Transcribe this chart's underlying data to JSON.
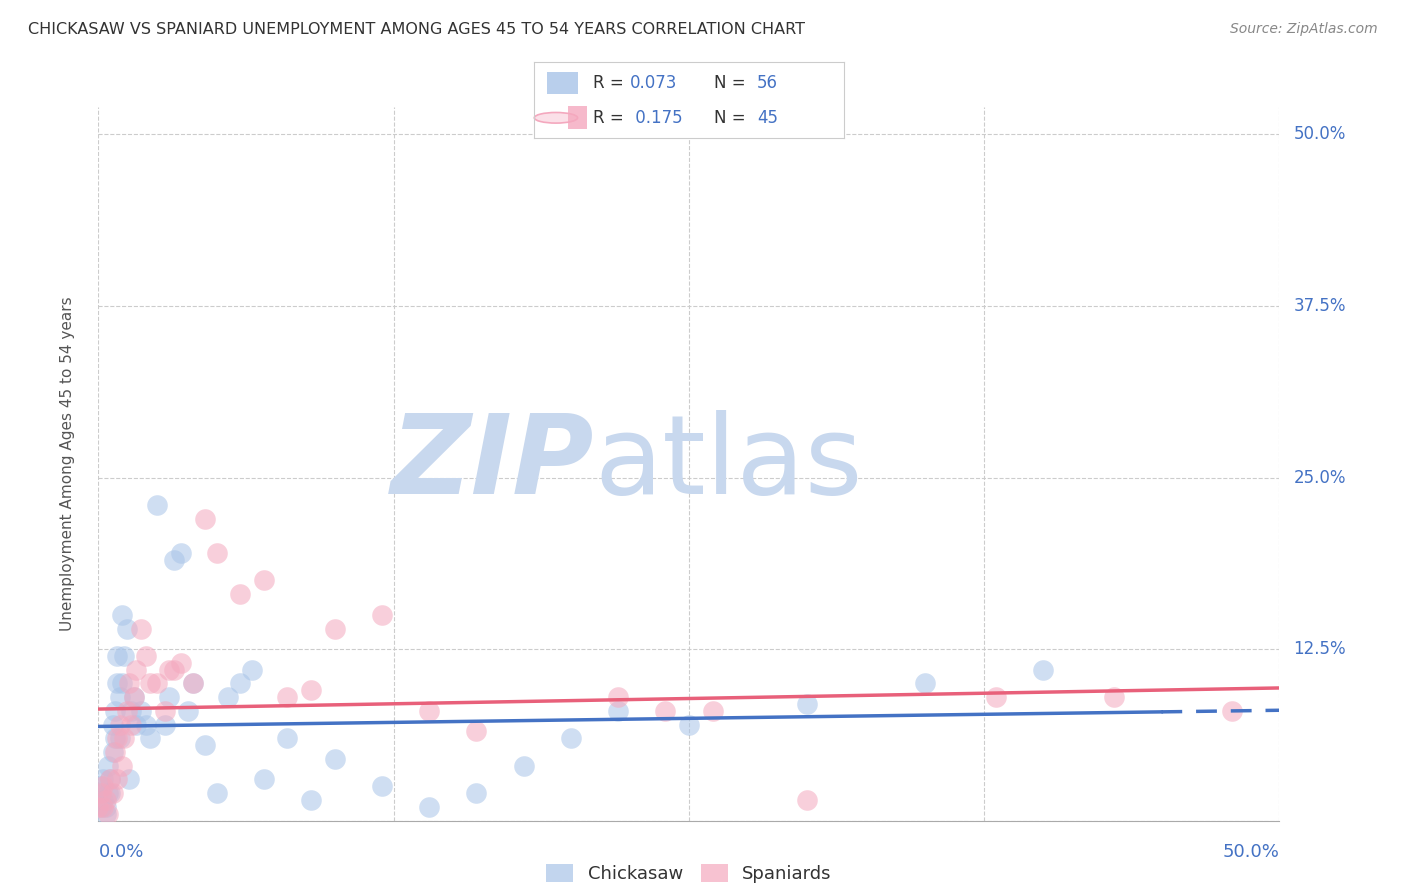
{
  "title": "CHICKASAW VS SPANIARD UNEMPLOYMENT AMONG AGES 45 TO 54 YEARS CORRELATION CHART",
  "source": "Source: ZipAtlas.com",
  "ylabel": "Unemployment Among Ages 45 to 54 years",
  "xlim": [
    0.0,
    0.5
  ],
  "ylim": [
    0.0,
    0.52
  ],
  "chickasaw_R": "0.073",
  "chickasaw_N": "56",
  "spaniard_R": "0.175",
  "spaniard_N": "45",
  "chickasaw_color": "#a8c4e8",
  "spaniard_color": "#f4a8be",
  "chickasaw_line_color": "#4472c4",
  "spaniard_line_color": "#e8607a",
  "background_color": "#ffffff",
  "watermark_zip": "ZIP",
  "watermark_atlas": "atlas",
  "watermark_color_zip": "#c8d8ee",
  "watermark_color_atlas": "#c8d8ee",
  "chickasaw_x": [
    0.0,
    0.001,
    0.001,
    0.002,
    0.002,
    0.003,
    0.003,
    0.004,
    0.004,
    0.005,
    0.005,
    0.006,
    0.006,
    0.007,
    0.007,
    0.008,
    0.008,
    0.009,
    0.009,
    0.01,
    0.01,
    0.011,
    0.012,
    0.013,
    0.014,
    0.015,
    0.016,
    0.018,
    0.02,
    0.022,
    0.025,
    0.028,
    0.03,
    0.032,
    0.035,
    0.038,
    0.04,
    0.045,
    0.05,
    0.055,
    0.06,
    0.065,
    0.07,
    0.08,
    0.09,
    0.1,
    0.12,
    0.14,
    0.16,
    0.18,
    0.2,
    0.22,
    0.25,
    0.3,
    0.35,
    0.4
  ],
  "chickasaw_y": [
    0.02,
    0.01,
    0.025,
    0.015,
    0.03,
    0.005,
    0.01,
    0.02,
    0.04,
    0.02,
    0.03,
    0.05,
    0.07,
    0.06,
    0.08,
    0.1,
    0.12,
    0.06,
    0.09,
    0.1,
    0.15,
    0.12,
    0.14,
    0.03,
    0.08,
    0.09,
    0.07,
    0.08,
    0.07,
    0.06,
    0.23,
    0.07,
    0.09,
    0.19,
    0.195,
    0.08,
    0.1,
    0.055,
    0.02,
    0.09,
    0.1,
    0.11,
    0.03,
    0.06,
    0.015,
    0.045,
    0.025,
    0.01,
    0.02,
    0.04,
    0.06,
    0.08,
    0.07,
    0.085,
    0.1,
    0.11
  ],
  "spaniard_x": [
    0.0,
    0.001,
    0.002,
    0.002,
    0.003,
    0.004,
    0.005,
    0.006,
    0.007,
    0.008,
    0.008,
    0.009,
    0.01,
    0.011,
    0.012,
    0.013,
    0.014,
    0.015,
    0.016,
    0.018,
    0.02,
    0.022,
    0.025,
    0.028,
    0.03,
    0.032,
    0.035,
    0.04,
    0.045,
    0.05,
    0.06,
    0.07,
    0.08,
    0.09,
    0.1,
    0.12,
    0.14,
    0.16,
    0.22,
    0.24,
    0.26,
    0.3,
    0.38,
    0.43,
    0.48
  ],
  "spaniard_y": [
    0.01,
    0.02,
    0.01,
    0.025,
    0.015,
    0.005,
    0.03,
    0.02,
    0.05,
    0.06,
    0.03,
    0.07,
    0.04,
    0.06,
    0.08,
    0.1,
    0.07,
    0.09,
    0.11,
    0.14,
    0.12,
    0.1,
    0.1,
    0.08,
    0.11,
    0.11,
    0.115,
    0.1,
    0.22,
    0.195,
    0.165,
    0.175,
    0.09,
    0.095,
    0.14,
    0.15,
    0.08,
    0.065,
    0.09,
    0.08,
    0.08,
    0.015,
    0.09,
    0.09,
    0.08
  ]
}
